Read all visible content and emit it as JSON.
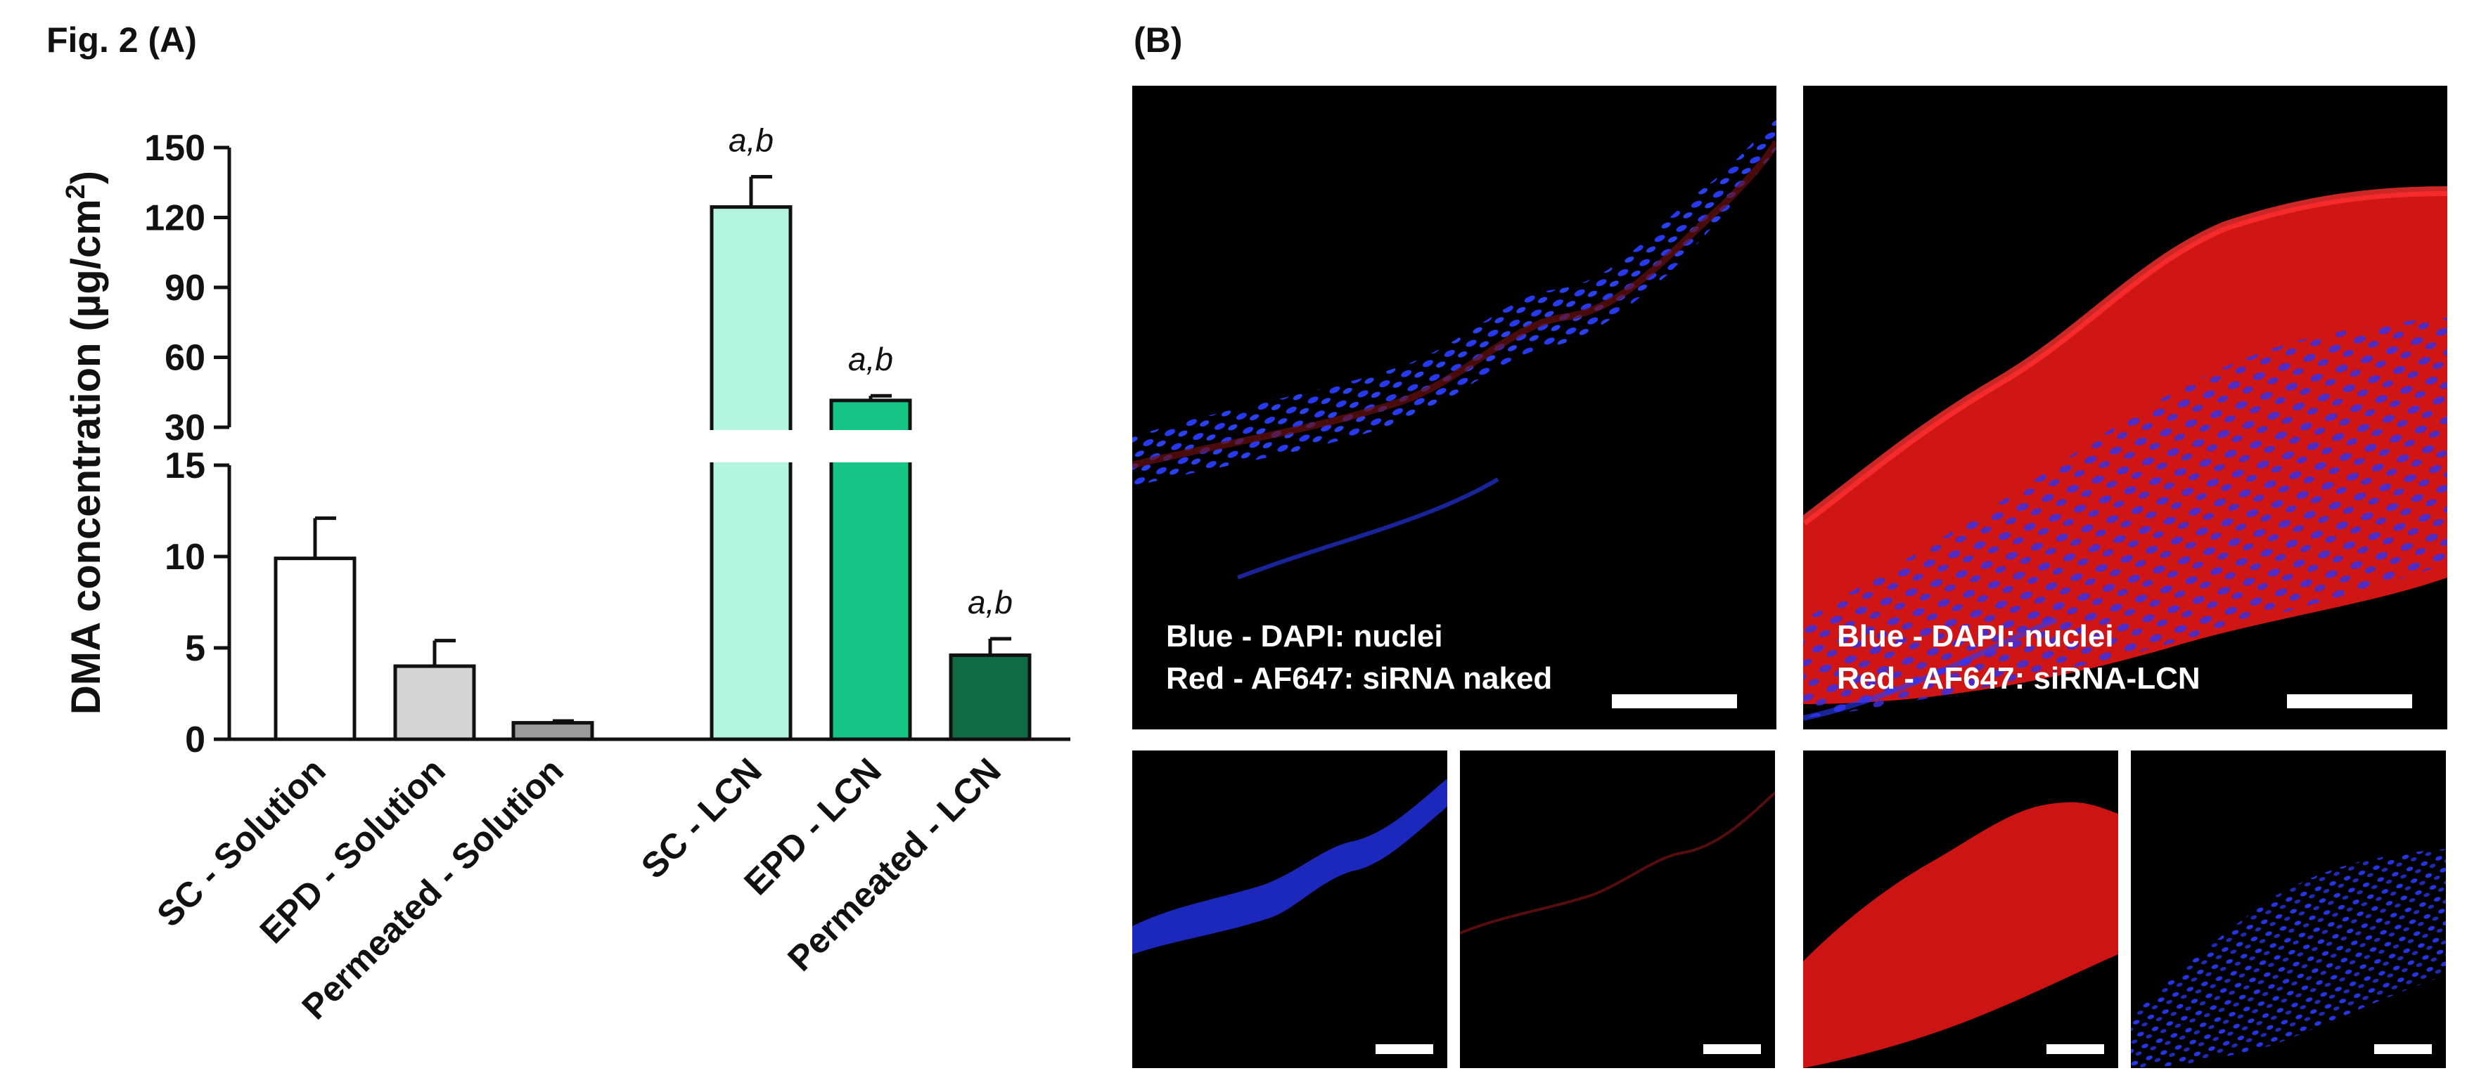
{
  "figure": {
    "title_a": "Fig. 2 (A)",
    "title_b": "(B)"
  },
  "chart_data": {
    "type": "bar",
    "title": "",
    "ylabel": "DMA concentration",
    "yunit_prefix": "(µg/cm",
    "yunit_sup": "2",
    "yunit_suffix": ")",
    "axis_break": {
      "lower_ylim": [
        0,
        15
      ],
      "upper_ylim": [
        30,
        150
      ],
      "lower_ticks": [
        0,
        5,
        10,
        15
      ],
      "upper_ticks": [
        30,
        60,
        90,
        120,
        150
      ]
    },
    "categories": [
      "SC - Solution",
      "EPD - Solution",
      "Permeated - Solution",
      "SC - LCN",
      "EPD - LCN",
      "Permeated - LCN"
    ],
    "values": [
      9.9,
      4.0,
      0.9,
      124.5,
      41.5,
      4.6
    ],
    "errors": [
      2.2,
      1.4,
      0.1,
      13.0,
      2.0,
      0.9
    ],
    "colors": [
      "#ffffff",
      "#d4d4d4",
      "#9c9c9c",
      "#b3f5de",
      "#14c585",
      "#0e6b45"
    ],
    "annotations": [
      "",
      "",
      "",
      "a,b",
      "a,b",
      "a,b"
    ],
    "grid": false,
    "legend": "none"
  },
  "panel_b": {
    "naked_legend_line1": "Blue - DAPI: nuclei",
    "naked_legend_line2": "Red - AF647: siRNA naked",
    "lcn_legend_line1": "Blue - DAPI: nuclei",
    "lcn_legend_line2": "Red - AF647: siRNA-LCN",
    "colors": {
      "nuclei": "#2a3cff",
      "sirna": "#e01818",
      "background": "#000000"
    }
  }
}
